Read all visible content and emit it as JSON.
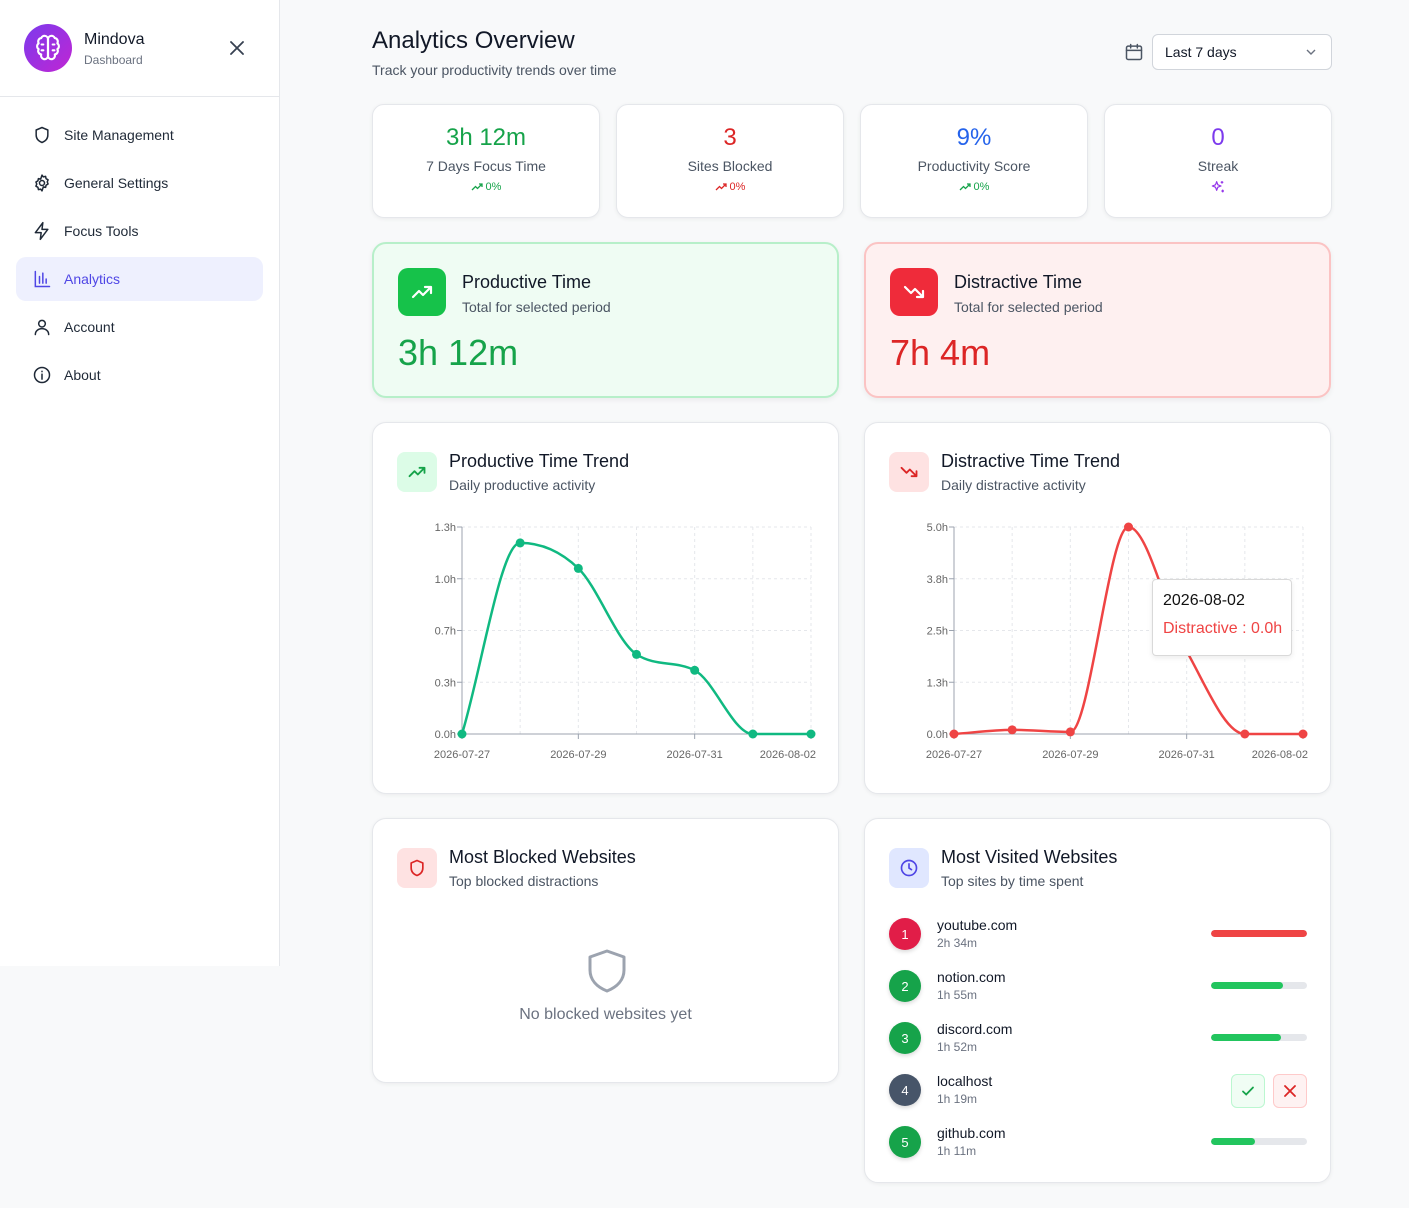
{
  "app": {
    "name": "Mindova",
    "subtitle": "Dashboard"
  },
  "sidebar": {
    "items": [
      {
        "label": "Site Management",
        "icon": "shield-icon",
        "active": false
      },
      {
        "label": "General Settings",
        "icon": "gear-icon",
        "active": false
      },
      {
        "label": "Focus Tools",
        "icon": "lightning-icon",
        "active": false
      },
      {
        "label": "Analytics",
        "icon": "bar-chart-icon",
        "active": true
      },
      {
        "label": "Account",
        "icon": "user-icon",
        "active": false
      },
      {
        "label": "About",
        "icon": "info-icon",
        "active": false
      }
    ]
  },
  "header": {
    "title": "Analytics Overview",
    "subtitle": "Track your productivity trends over time",
    "range": "Last 7 days"
  },
  "stats": [
    {
      "value": "3h 12m",
      "label": "7 Days Focus Time",
      "change": "0%",
      "color": "#16a34a"
    },
    {
      "value": "3",
      "label": "Sites Blocked",
      "change": "0%",
      "color": "#dc2626"
    },
    {
      "value": "9%",
      "label": "Productivity Score",
      "change": "0%",
      "color": "#2563eb"
    },
    {
      "value": "0",
      "label": "Streak",
      "change": "",
      "color": "#7c3aed"
    }
  ],
  "productive": {
    "title": "Productive Time",
    "subtitle": "Total for selected period",
    "value": "3h 12m"
  },
  "distractive": {
    "title": "Distractive Time",
    "subtitle": "Total for selected period",
    "value": "7h 4m"
  },
  "prod_trend": {
    "title": "Productive Time Trend",
    "subtitle": "Daily productive activity"
  },
  "dist_trend": {
    "title": "Distractive Time Trend",
    "subtitle": "Daily distractive activity"
  },
  "tooltip": {
    "date": "2026-08-02",
    "text": "Distractive : 0.0h"
  },
  "blocked": {
    "title": "Most Blocked Websites",
    "subtitle": "Top blocked distractions",
    "empty": "No blocked websites yet"
  },
  "visited": {
    "title": "Most Visited Websites",
    "subtitle": "Top sites by time spent",
    "sites": [
      {
        "rank": "1",
        "name": "youtube.com",
        "time": "2h 34m",
        "share": 1.0,
        "color": "#e11d48",
        "bar_color": "#ef4444"
      },
      {
        "rank": "2",
        "name": "notion.com",
        "time": "1h 55m",
        "share": 0.75,
        "color": "#16a34a",
        "bar_color": "#22c55e"
      },
      {
        "rank": "3",
        "name": "discord.com",
        "time": "1h 52m",
        "share": 0.73,
        "color": "#16a34a",
        "bar_color": "#22c55e"
      },
      {
        "rank": "4",
        "name": "localhost",
        "time": "1h 19m",
        "share": null,
        "color": "#475569",
        "bar_color": ""
      },
      {
        "rank": "5",
        "name": "github.com",
        "time": "1h 11m",
        "share": 0.46,
        "color": "#16a34a",
        "bar_color": "#22c55e"
      }
    ]
  },
  "chart_data": [
    {
      "type": "line",
      "x": [
        "2026-07-27",
        "2026-07-28",
        "2026-07-29",
        "2026-07-30",
        "2026-07-31",
        "2026-08-01",
        "2026-08-02"
      ],
      "x_tick_labels": [
        "2026-07-27",
        "2026-07-29",
        "2026-07-31",
        "2026-08-02"
      ],
      "series": [
        {
          "values": [
            0.0,
            1.2,
            1.04,
            0.5,
            0.4,
            0.0,
            0.0
          ],
          "color": "#10b981"
        }
      ],
      "y_ticks": [
        0.0,
        0.325,
        0.65,
        0.975,
        1.3
      ],
      "y_tick_labels": [
        "0.0h",
        "0.3h",
        "0.7h",
        "1.0h",
        "1.3h"
      ],
      "ylim": [
        0,
        1.3
      ],
      "grid": true
    },
    {
      "type": "line",
      "x": [
        "2026-07-27",
        "2026-07-28",
        "2026-07-29",
        "2026-07-30",
        "2026-07-31",
        "2026-08-01",
        "2026-08-02"
      ],
      "x_tick_labels": [
        "2026-07-27",
        "2026-07-29",
        "2026-07-31",
        "2026-08-02"
      ],
      "series": [
        {
          "values": [
            0.0,
            0.1,
            0.05,
            5.0,
            2.0,
            0.0,
            0.0
          ],
          "color": "#ef4444"
        }
      ],
      "y_ticks": [
        0.0,
        1.25,
        2.5,
        3.75,
        5.0
      ],
      "y_tick_labels": [
        "0.0h",
        "1.3h",
        "2.5h",
        "3.8h",
        "5.0h"
      ],
      "ylim": [
        0,
        5.0
      ],
      "grid": true
    }
  ]
}
